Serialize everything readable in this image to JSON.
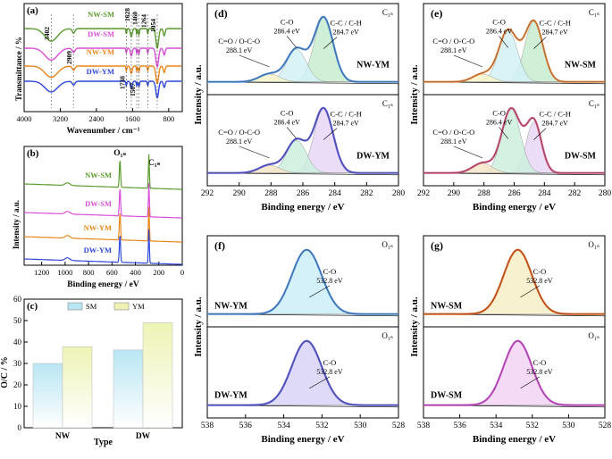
{
  "chart_data": [
    {
      "panel": "(a)",
      "type": "line",
      "title": "",
      "xlabel": "Wavenumber / cm⁻¹",
      "ylabel": "Transmittance / %",
      "xlim": [
        4000,
        500
      ],
      "xticks": [
        4000,
        3200,
        2400,
        1600,
        800
      ],
      "series": [
        {
          "name": "NW-SM",
          "color": "#5a9a2e"
        },
        {
          "name": "DW-SM",
          "color": "#d64fd6"
        },
        {
          "name": "NW-YM",
          "color": "#e8861a"
        },
        {
          "name": "DW-YM",
          "color": "#2f47d8"
        }
      ],
      "peaks": [
        "3402",
        "2909",
        "1628",
        "1460",
        "1264",
        "1054",
        "1738",
        "1507"
      ]
    },
    {
      "panel": "(b)",
      "type": "line",
      "xlabel": "Binding energy / eV",
      "ylabel": "Intensity / a.u.",
      "xlim": [
        1350,
        0
      ],
      "xticks": [
        1200,
        1000,
        800,
        600,
        400,
        200,
        0
      ],
      "peak_labels": [
        "O₁ₛ",
        "C₁ₛ"
      ],
      "series": [
        {
          "name": "NW-SM",
          "color": "#5a9a2e"
        },
        {
          "name": "DW-SM",
          "color": "#d64fd6"
        },
        {
          "name": "NW-YM",
          "color": "#e8861a"
        },
        {
          "name": "DW-YM",
          "color": "#2f47d8"
        }
      ]
    },
    {
      "panel": "(c)",
      "type": "bar",
      "xlabel": "Type",
      "ylabel": "O/C / %",
      "ylim": [
        0,
        60
      ],
      "yticks": [
        0,
        10,
        20,
        30,
        40,
        50,
        60
      ],
      "categories": [
        "NW",
        "DW"
      ],
      "series": [
        {
          "name": "SM",
          "values": [
            30,
            36.3
          ],
          "color": "#b9e6f3"
        },
        {
          "name": "YM",
          "values": [
            37.8,
            49
          ],
          "color": "#eef3b5"
        }
      ]
    },
    {
      "panel": "(d)",
      "type": "line",
      "element": "C₁ₛ",
      "xlabel": "Binding energy / eV",
      "ylabel": "Intensity / a.u.",
      "xlim": [
        292,
        280
      ],
      "xticks": [
        292,
        290,
        288,
        286,
        284,
        282,
        280
      ],
      "subplots": [
        {
          "sample": "NW-YM",
          "color": "#4a90e2",
          "peaks": [
            {
              "label": "C-C / C-H",
              "value": "284.7 eV",
              "center": 284.7
            },
            {
              "label": "C-O",
              "value": "286.4 eV",
              "center": 286.4
            },
            {
              "label": "C=O / O-C-O",
              "value": "288.1 eV",
              "center": 288.1
            }
          ]
        },
        {
          "sample": "DW-YM",
          "color": "#5b5be0",
          "peaks": [
            {
              "label": "C-C / C-H",
              "value": "284.7 eV",
              "center": 284.7
            },
            {
              "label": "C-O",
              "value": "286.4 eV",
              "center": 286.4
            },
            {
              "label": "C=O / O-C-O",
              "value": "288.1 eV",
              "center": 288.1
            }
          ]
        }
      ]
    },
    {
      "panel": "(e)",
      "type": "line",
      "element": "C₁ₛ",
      "xlabel": "Binding energy / eV",
      "ylabel": "Intensity / a.u.",
      "xlim": [
        292,
        280
      ],
      "xticks": [
        292,
        290,
        288,
        286,
        284,
        282,
        280
      ],
      "subplots": [
        {
          "sample": "NW-SM",
          "color": "#f08a3c",
          "peaks": [
            {
              "label": "C-C / C-H",
              "value": "284.7 eV",
              "center": 284.7
            },
            {
              "label": "C-O",
              "value": "286.4 eV",
              "center": 286.4
            },
            {
              "label": "C=O / O-C-O",
              "value": "288.1 eV",
              "center": 288.1
            }
          ]
        },
        {
          "sample": "DW-SM",
          "color": "#d64f7a",
          "peaks": [
            {
              "label": "C-C / C-H",
              "value": "284.7 eV",
              "center": 284.7
            },
            {
              "label": "C-O",
              "value": "286.4 eV",
              "center": 286.4
            },
            {
              "label": "C=O / O-C-O",
              "value": "288.1 eV",
              "center": 288.1
            }
          ]
        }
      ]
    },
    {
      "panel": "(f)",
      "type": "line",
      "element": "O₁ₛ",
      "xlabel": "Binding energy / eV",
      "ylabel": "Intensity / a.u.",
      "xlim": [
        538,
        528
      ],
      "xticks": [
        538,
        536,
        534,
        532,
        530,
        528
      ],
      "subplots": [
        {
          "sample": "NW-YM",
          "color": "#4a90e2",
          "peaks": [
            {
              "label": "C-O",
              "value": "532.8 eV",
              "center": 532.8
            }
          ]
        },
        {
          "sample": "DW-YM",
          "color": "#5b5be0",
          "peaks": [
            {
              "label": "C-O",
              "value": "532.8 eV",
              "center": 532.8
            }
          ]
        }
      ]
    },
    {
      "panel": "(g)",
      "type": "line",
      "element": "O₁ₛ",
      "xlabel": "Binding energy / eV",
      "ylabel": "Intensity / a.u.",
      "xlim": [
        538,
        528
      ],
      "xticks": [
        538,
        536,
        534,
        532,
        530,
        528
      ],
      "subplots": [
        {
          "sample": "NW-SM",
          "color": "#e8601a",
          "peaks": [
            {
              "label": "C-O",
              "value": "532.8 eV",
              "center": 532.8
            }
          ]
        },
        {
          "sample": "DW-SM",
          "color": "#d64fd6",
          "peaks": [
            {
              "label": "C-O",
              "value": "532.8 eV",
              "center": 532.8
            }
          ]
        }
      ]
    }
  ]
}
